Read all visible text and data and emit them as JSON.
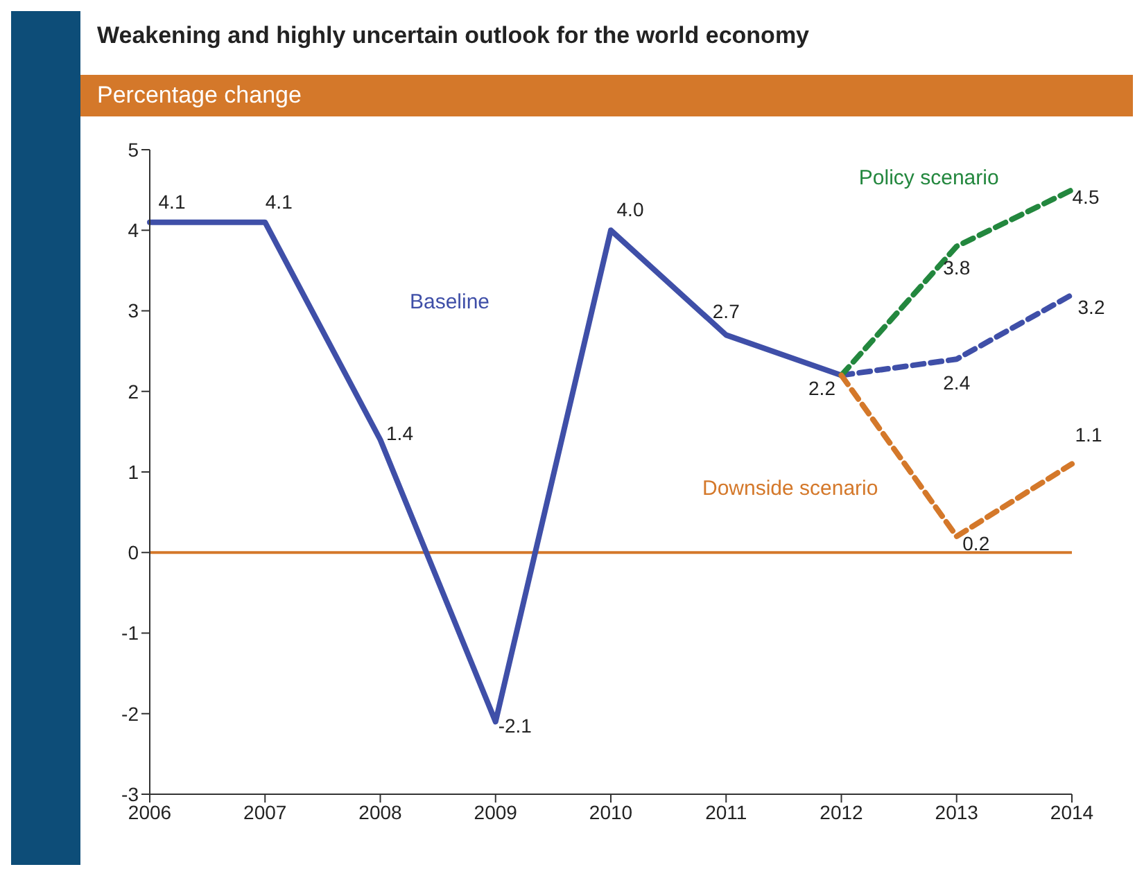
{
  "chart_data": {
    "type": "line",
    "title": "Weakening and highly uncertain outlook for the world economy",
    "subtitle": "Percentage change",
    "categories": [
      "2006",
      "2007",
      "2008",
      "2009",
      "2010",
      "2011",
      "2012",
      "2013",
      "2014"
    ],
    "series": [
      {
        "name": "Baseline",
        "color": "#3f4fa8",
        "line_style": "solid",
        "values": [
          4.1,
          4.1,
          1.4,
          -2.1,
          4.0,
          2.7,
          2.2,
          null,
          null
        ],
        "value_labels": [
          "4.1",
          "4.1",
          "1.4",
          "-2.1",
          "4.0",
          "2.7",
          "2.2",
          null,
          null
        ]
      },
      {
        "color": "#3f4fa8",
        "line_style": "dashed",
        "values": [
          null,
          null,
          null,
          null,
          null,
          null,
          2.2,
          2.4,
          3.2
        ],
        "value_labels": [
          null,
          null,
          null,
          null,
          null,
          null,
          null,
          "2.4",
          "3.2"
        ]
      },
      {
        "name": "Policy scenario",
        "color": "#23873e",
        "line_style": "dashed",
        "values": [
          null,
          null,
          null,
          null,
          null,
          null,
          2.2,
          3.8,
          4.5
        ],
        "value_labels": [
          null,
          null,
          null,
          null,
          null,
          null,
          null,
          "3.8",
          "4.5"
        ]
      },
      {
        "name": "Downside scenario",
        "color": "#d4782a",
        "line_style": "dashed",
        "values": [
          null,
          null,
          null,
          null,
          null,
          null,
          2.2,
          0.2,
          1.1
        ],
        "value_labels": [
          null,
          null,
          null,
          null,
          null,
          null,
          null,
          "0.2",
          "1.1"
        ]
      }
    ],
    "ylim": [
      -3,
      5
    ],
    "yticks": [
      -3,
      -2,
      -1,
      0,
      1,
      2,
      3,
      4,
      5
    ],
    "ref_lines": [
      {
        "axis": "y",
        "value": 0,
        "color": "#d4782a",
        "line_style": "solid"
      }
    ],
    "grid": false,
    "legend": false,
    "marker": "none"
  }
}
